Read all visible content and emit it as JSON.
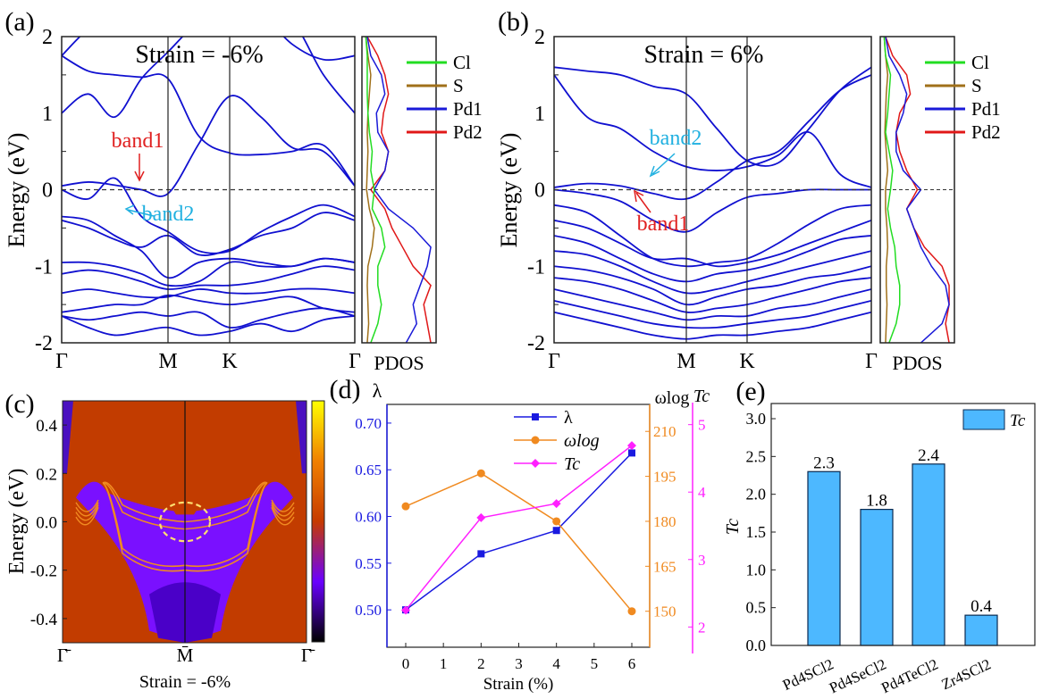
{
  "colors": {
    "band": "#1010d0",
    "cl": "#22dd22",
    "s": "#a0701a",
    "pd1": "#1a1ad8",
    "pd2": "#e01818",
    "lambda": "#1a1ae0",
    "omega": "#f08a20",
    "tc": "#ff20ff",
    "bar": "#4db8ff",
    "band1_label": "#e02020",
    "band2_label": "#20b0e0"
  },
  "chart_data": [
    {
      "panel": "(a)",
      "type": "line",
      "title": "Strain = -6%",
      "ylabel": "Energy (eV)",
      "ylim": [
        -2,
        2
      ],
      "yticks": [
        "2",
        "1",
        "0",
        "-1",
        "-2"
      ],
      "kpoints": [
        "Γ",
        "M",
        "K",
        "Γ"
      ],
      "fermi_level": 0,
      "annotations": [
        "band1",
        "band2"
      ],
      "k": [
        0,
        0.25,
        0.5,
        0.75,
        1,
        1.5,
        2,
        2.25,
        2.5,
        2.75,
        3
      ],
      "bands": [
        [
          1.75,
          1.55,
          1.5,
          1.47,
          1.45,
          0.7,
          0.48,
          0.46,
          0.5,
          0.58,
          0.05
        ],
        [
          1.0,
          1.25,
          0.95,
          1.45,
          1.8,
          2.2,
          2.4,
          2.3,
          2.2,
          1.5,
          1.0
        ],
        [
          0.05,
          0.1,
          0.06,
          0.0,
          -0.05,
          0.6,
          1.22,
          0.95,
          0.55,
          0.5,
          0.05
        ],
        [
          0.0,
          -0.12,
          0.15,
          -0.35,
          -0.55,
          -0.8,
          -0.8,
          -0.55,
          -0.35,
          -0.2,
          -0.35
        ],
        [
          -0.35,
          -0.4,
          -0.6,
          -0.8,
          -1.15,
          -0.95,
          -0.9,
          -0.95,
          -1.0,
          -0.9,
          -0.95
        ],
        [
          -0.4,
          -0.5,
          -0.65,
          -0.75,
          -0.6,
          -0.85,
          -0.78,
          -0.6,
          -0.5,
          -0.3,
          -0.4
        ],
        [
          -0.95,
          -0.95,
          -1.0,
          -1.1,
          -1.25,
          -1.2,
          -0.95,
          -1.0,
          -1.0,
          -0.9,
          -0.95
        ],
        [
          -1.1,
          -1.05,
          -1.1,
          -1.2,
          -1.3,
          -1.25,
          -1.25,
          -1.2,
          -1.1,
          -1.0,
          -1.05
        ],
        [
          -1.35,
          -1.3,
          -1.35,
          -1.4,
          -1.4,
          -1.3,
          -1.35,
          -1.35,
          -1.3,
          -1.3,
          -1.35
        ],
        [
          -1.6,
          -1.55,
          -1.5,
          -1.5,
          -1.38,
          -1.45,
          -1.5,
          -1.45,
          -1.4,
          -1.55,
          -1.6
        ],
        [
          -1.65,
          -1.7,
          -1.65,
          -1.6,
          -1.65,
          -1.6,
          -1.8,
          -1.7,
          -1.6,
          -1.55,
          -1.65
        ],
        [
          -1.65,
          -1.8,
          -1.9,
          -1.85,
          -1.8,
          -1.9,
          -1.85,
          -1.75,
          -1.85,
          -1.7,
          -1.65
        ],
        [
          1.75,
          2.1,
          2.3,
          2.5,
          2.5,
          2.5,
          2.5,
          2.3,
          1.9,
          1.7,
          1.75
        ]
      ],
      "pdos": {
        "xlabel": "PDOS",
        "energy": [
          -2,
          -1.75,
          -1.5,
          -1.25,
          -1,
          -0.75,
          -0.5,
          -0.25,
          0,
          0.25,
          0.5,
          0.75,
          1,
          1.25,
          1.5,
          1.75,
          2
        ],
        "series": [
          {
            "name": "Cl",
            "values": [
              0.1,
              0.2,
              0.25,
              0.2,
              0.2,
              0.3,
              0.25,
              0.12,
              0.15,
              0.1,
              0.12,
              0.08,
              0.06,
              0.05,
              0.05,
              0.05,
              0.03
            ]
          },
          {
            "name": "S",
            "values": [
              0.05,
              0.07,
              0.06,
              0.05,
              0.06,
              0.12,
              0.15,
              0.08,
              0.04,
              0.05,
              0.06,
              0.05,
              0.06,
              0.08,
              0.1,
              0.06,
              0.03
            ]
          },
          {
            "name": "Pd1",
            "values": [
              0.6,
              0.75,
              0.7,
              0.8,
              0.9,
              0.95,
              0.7,
              0.35,
              0.15,
              0.3,
              0.35,
              0.2,
              0.18,
              0.3,
              0.25,
              0.1,
              0.05
            ]
          },
          {
            "name": "Pd2",
            "values": [
              0.95,
              0.9,
              0.85,
              0.95,
              0.7,
              0.55,
              0.4,
              0.3,
              0.1,
              0.3,
              0.35,
              0.25,
              0.28,
              0.35,
              0.3,
              0.2,
              0.05
            ]
          }
        ]
      }
    },
    {
      "panel": "(b)",
      "type": "line",
      "title": "Strain = 6%",
      "ylabel": "Energy (eV)",
      "ylim": [
        -2,
        2
      ],
      "yticks": [
        "2",
        "1",
        "0",
        "-1",
        "-2"
      ],
      "kpoints": [
        "Γ",
        "M",
        "K",
        "Γ"
      ],
      "fermi_level": 0,
      "annotations": [
        "band2",
        "band1"
      ],
      "k": [
        0,
        0.25,
        0.5,
        0.75,
        1,
        1.5,
        2,
        2.25,
        2.5,
        2.75,
        3
      ],
      "bands": [
        [
          1.6,
          1.55,
          1.5,
          1.35,
          1.25,
          0.8,
          0.38,
          0.35,
          0.8,
          1.3,
          1.6
        ],
        [
          1.5,
          0.95,
          0.8,
          0.5,
          0.3,
          0.25,
          0.3,
          0.45,
          0.75,
          0.2,
          0.03
        ],
        [
          0.03,
          0.08,
          0.05,
          -0.05,
          -0.12,
          0.1,
          0.38,
          0.5,
          0.9,
          1.3,
          1.5
        ],
        [
          0.0,
          -0.05,
          -0.15,
          -0.4,
          -0.55,
          -0.3,
          -0.1,
          -0.05,
          0.0,
          0.0,
          0.0
        ],
        [
          -0.2,
          -0.3,
          -0.6,
          -0.9,
          -1.0,
          -0.95,
          -0.9,
          -0.7,
          -0.45,
          -0.25,
          -0.2
        ],
        [
          -0.4,
          -0.5,
          -0.7,
          -0.9,
          -0.9,
          -1.0,
          -0.95,
          -0.85,
          -0.7,
          -0.55,
          -0.4
        ],
        [
          -0.6,
          -0.7,
          -0.9,
          -1.1,
          -1.2,
          -1.1,
          -1.05,
          -0.95,
          -0.8,
          -0.65,
          -0.6
        ],
        [
          -0.8,
          -0.85,
          -1.0,
          -1.2,
          -1.35,
          -1.3,
          -1.2,
          -1.1,
          -1.0,
          -0.9,
          -0.8
        ],
        [
          -1.0,
          -1.05,
          -1.15,
          -1.3,
          -1.5,
          -1.4,
          -1.3,
          -1.25,
          -1.15,
          -1.1,
          -1.0
        ],
        [
          -1.15,
          -1.2,
          -1.3,
          -1.45,
          -1.6,
          -1.55,
          -1.5,
          -1.4,
          -1.3,
          -1.2,
          -1.15
        ],
        [
          -1.3,
          -1.4,
          -1.5,
          -1.6,
          -1.7,
          -1.65,
          -1.65,
          -1.55,
          -1.5,
          -1.4,
          -1.3
        ],
        [
          -1.45,
          -1.55,
          -1.65,
          -1.75,
          -1.8,
          -1.8,
          -1.75,
          -1.7,
          -1.65,
          -1.55,
          -1.45
        ],
        [
          -1.6,
          -1.7,
          -1.8,
          -1.9,
          -1.95,
          -1.9,
          -1.9,
          -1.85,
          -1.8,
          -1.7,
          -1.6
        ]
      ],
      "pdos": {
        "xlabel": "PDOS",
        "energy": [
          -2,
          -1.75,
          -1.5,
          -1.25,
          -1,
          -0.75,
          -0.5,
          -0.25,
          0,
          0.25,
          0.5,
          0.75,
          1,
          1.25,
          1.5,
          1.75,
          2
        ],
        "series": [
          {
            "name": "Cl",
            "values": [
              0.1,
              0.2,
              0.25,
              0.25,
              0.2,
              0.18,
              0.12,
              0.08,
              0.12,
              0.15,
              0.1,
              0.05,
              0.08,
              0.1,
              0.12,
              0.05,
              0.03
            ]
          },
          {
            "name": "S",
            "values": [
              0.05,
              0.06,
              0.07,
              0.06,
              0.06,
              0.08,
              0.07,
              0.05,
              0.05,
              0.08,
              0.06,
              0.04,
              0.05,
              0.06,
              0.08,
              0.05,
              0.03
            ]
          },
          {
            "name": "Pd1",
            "values": [
              0.55,
              0.85,
              0.95,
              0.9,
              0.7,
              0.55,
              0.45,
              0.35,
              0.55,
              0.3,
              0.2,
              0.2,
              0.3,
              0.35,
              0.25,
              0.1,
              0.05
            ]
          },
          {
            "name": "Pd2",
            "values": [
              0.95,
              0.9,
              0.95,
              0.95,
              0.85,
              0.6,
              0.45,
              0.35,
              0.5,
              0.35,
              0.25,
              0.2,
              0.25,
              0.4,
              0.35,
              0.15,
              0.05
            ]
          }
        ]
      }
    },
    {
      "panel": "(c)",
      "type": "heatmap",
      "ylabel": "Energy (eV)",
      "xlabel": "Strain = -6%",
      "ylim": [
        -0.5,
        0.5
      ],
      "yticks": [
        "0.4",
        "0.2",
        "0.0",
        "-0.2",
        "-0.4"
      ],
      "kpoints": [
        "Γ̄",
        "M̄",
        "Γ̄"
      ],
      "colormap": [
        "#000000",
        "#6a00ff",
        "#c63a00",
        "#f08000",
        "#ffff00"
      ]
    },
    {
      "panel": "(d)",
      "type": "line",
      "xlabel": "Strain (%)",
      "x": [
        0,
        2,
        4,
        6
      ],
      "xlim": [
        -0.5,
        6.5
      ],
      "xticks": [
        "0",
        "1",
        "2",
        "3",
        "4",
        "5",
        "6"
      ],
      "axes": {
        "left": {
          "label": "λ",
          "ylim": [
            0.46,
            0.72
          ],
          "ticks": [
            "0.70",
            "0.65",
            "0.60",
            "0.55",
            "0.50"
          ]
        },
        "right1": {
          "label": "ωlog",
          "ylim": [
            138,
            219
          ],
          "ticks": [
            "210",
            "195",
            "180",
            "165",
            "150"
          ]
        },
        "right2": {
          "label": "Tc",
          "ylim": [
            1.7,
            5.3
          ],
          "ticks": [
            "5",
            "4",
            "3",
            "2"
          ]
        }
      },
      "series": [
        {
          "name": "λ",
          "axis": "left",
          "values": [
            0.5,
            0.56,
            0.585,
            0.668
          ]
        },
        {
          "name": "ωlog",
          "axis": "right1",
          "values": [
            185,
            196,
            180,
            150
          ]
        },
        {
          "name": "Tc",
          "axis": "right2",
          "values": [
            2.25,
            3.62,
            3.83,
            4.69
          ]
        }
      ],
      "legend": "top-center"
    },
    {
      "panel": "(e)",
      "type": "bar",
      "ylabel": "Tc",
      "ylim": [
        0,
        3.2
      ],
      "yticks": [
        "3.0",
        "2.5",
        "2.0",
        "1.5",
        "1.0",
        "0.5",
        "0.0"
      ],
      "categories": [
        "Pd4SCl2",
        "Pd4SeCl2",
        "Pd4TeCl2",
        "Zr4SCl2"
      ],
      "values": [
        2.3,
        1.8,
        2.4,
        0.4
      ],
      "data_labels": [
        "2.3",
        "1.8",
        "2.4",
        "0.4"
      ],
      "legend": "top-right",
      "series_name": "Tc"
    }
  ]
}
